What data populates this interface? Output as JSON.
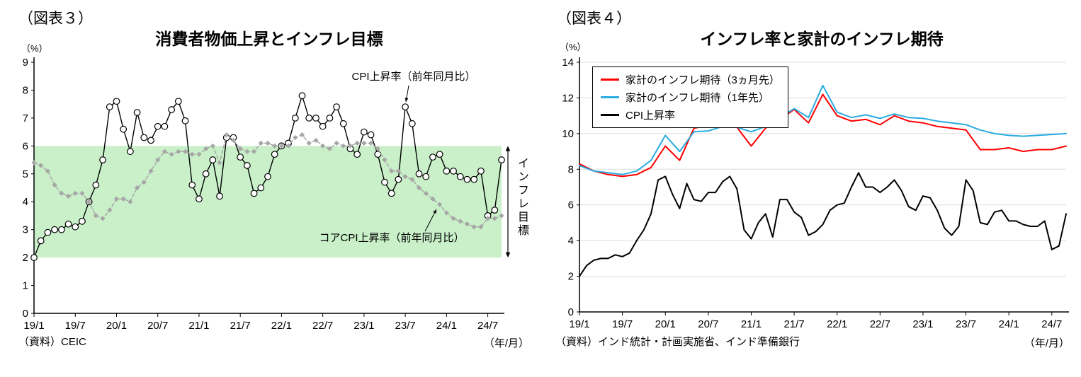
{
  "page": {
    "background": "#ffffff"
  },
  "chart_data": [
    {
      "type": "line",
      "figure_label": "（図表３）",
      "title": "消費者物価上昇とインフレ目標",
      "y_unit": "（%）",
      "x_unit": "（年/月）",
      "source": "（資料）CEIC",
      "ylim": [
        0,
        9
      ],
      "ytick_step": 1,
      "grid": false,
      "n_points": 69,
      "x_start": "19/1",
      "x_end": "24/9",
      "xticks": [
        "19/1",
        "19/7",
        "20/1",
        "20/7",
        "21/1",
        "21/7",
        "22/1",
        "22/7",
        "23/1",
        "23/7",
        "24/1",
        "24/7"
      ],
      "target_band": {
        "from": 2,
        "to": 6,
        "color": "#c9f0c9",
        "label": "インフレ目標"
      },
      "annotations": [
        "CPI上昇率（前年同月比）",
        "コアCPI上昇率（前年同月比）"
      ],
      "series": [
        {
          "name": "CPI上昇率（前年同月比）",
          "color": "#000000",
          "marker": "circle",
          "marker_fill": "#ffffff",
          "values": [
            2.0,
            2.6,
            2.9,
            3.0,
            3.0,
            3.2,
            3.1,
            3.3,
            4.0,
            4.6,
            5.5,
            7.4,
            7.6,
            6.6,
            5.8,
            7.2,
            6.3,
            6.2,
            6.7,
            6.7,
            7.3,
            7.6,
            6.9,
            4.6,
            4.1,
            5.0,
            5.5,
            4.2,
            6.3,
            6.3,
            5.6,
            5.3,
            4.3,
            4.5,
            4.9,
            5.7,
            6.0,
            6.1,
            7.0,
            7.8,
            7.0,
            7.0,
            6.7,
            7.0,
            7.4,
            6.8,
            5.9,
            5.7,
            6.5,
            6.4,
            5.7,
            4.7,
            4.3,
            4.8,
            7.4,
            6.8,
            5.0,
            4.9,
            5.6,
            5.7,
            5.1,
            5.1,
            4.9,
            4.8,
            4.8,
            5.1,
            3.5,
            3.7,
            5.5
          ]
        },
        {
          "name": "コアCPI上昇率（前年同月比）",
          "color": "#a6a6a6",
          "dash": "5,3",
          "marker": "diamond",
          "values": [
            5.4,
            5.3,
            5.1,
            4.6,
            4.3,
            4.2,
            4.3,
            4.3,
            4.0,
            3.5,
            3.4,
            3.7,
            4.1,
            4.1,
            4.0,
            4.5,
            4.7,
            5.1,
            5.5,
            5.8,
            5.7,
            5.8,
            5.8,
            5.7,
            5.7,
            5.9,
            6.0,
            5.4,
            6.4,
            6.2,
            5.9,
            5.8,
            5.8,
            6.1,
            6.1,
            6.0,
            6.0,
            6.0,
            6.3,
            6.4,
            6.1,
            6.2,
            6.0,
            5.9,
            6.1,
            6.0,
            6.0,
            6.1,
            6.1,
            6.1,
            5.9,
            5.5,
            5.1,
            5.1,
            4.9,
            4.8,
            4.5,
            4.3,
            4.1,
            3.9,
            3.6,
            3.4,
            3.3,
            3.2,
            3.1,
            3.1,
            3.4,
            3.4,
            3.5
          ]
        }
      ]
    },
    {
      "type": "line",
      "figure_label": "（図表４）",
      "title": "インフレ率と家計のインフレ期待",
      "y_unit": "（%）",
      "x_unit": "（年/月）",
      "source": "（資料）インド統計・計画実施省、インド準備銀行",
      "ylim": [
        0,
        14
      ],
      "ytick_step": 2,
      "grid": true,
      "legend_position": "top-left",
      "n_points": 69,
      "x_start": "19/1",
      "x_end": "24/9",
      "xticks": [
        "19/1",
        "19/7",
        "20/1",
        "20/7",
        "21/1",
        "21/7",
        "22/1",
        "22/7",
        "23/1",
        "23/7",
        "24/1",
        "24/7"
      ],
      "annotations": [],
      "series": [
        {
          "name": "家計のインフレ期待（3ヵ月先）",
          "color": "#ff0000",
          "x": [
            0,
            2,
            4,
            6,
            8,
            10,
            12,
            14,
            16,
            18,
            20,
            22,
            24,
            26,
            28,
            30,
            32,
            34,
            36,
            38,
            40,
            42,
            44,
            46,
            48,
            50,
            52,
            54,
            56,
            58,
            60,
            62,
            64,
            66,
            68
          ],
          "values": [
            8.3,
            7.9,
            7.7,
            7.6,
            7.7,
            8.1,
            9.3,
            8.5,
            10.3,
            10.45,
            10.4,
            10.35,
            9.3,
            10.3,
            10.8,
            11.35,
            10.6,
            12.2,
            11.0,
            10.7,
            10.8,
            10.5,
            11.0,
            10.7,
            10.6,
            10.4,
            10.3,
            10.2,
            9.1,
            9.1,
            9.2,
            9.0,
            9.1,
            9.1,
            9.3
          ]
        },
        {
          "name": "家計のインフレ期待（1年先）",
          "color": "#29abe2",
          "x": [
            0,
            2,
            4,
            6,
            8,
            10,
            12,
            14,
            16,
            18,
            20,
            22,
            24,
            26,
            28,
            30,
            32,
            34,
            36,
            38,
            40,
            42,
            44,
            46,
            48,
            50,
            52,
            54,
            56,
            58,
            60,
            62,
            64,
            66,
            68
          ],
          "values": [
            8.2,
            7.9,
            7.8,
            7.7,
            7.9,
            8.5,
            9.9,
            9.0,
            10.1,
            10.15,
            10.4,
            10.35,
            10.1,
            10.4,
            10.9,
            11.4,
            10.9,
            12.7,
            11.2,
            10.9,
            11.05,
            10.85,
            11.1,
            10.9,
            10.85,
            10.7,
            10.6,
            10.5,
            10.2,
            10.0,
            9.9,
            9.85,
            9.9,
            9.95,
            10.0
          ]
        },
        {
          "name": "CPI上昇率",
          "color": "#000000",
          "values": [
            2.0,
            2.6,
            2.9,
            3.0,
            3.0,
            3.2,
            3.1,
            3.3,
            4.0,
            4.6,
            5.5,
            7.4,
            7.6,
            6.6,
            5.8,
            7.2,
            6.3,
            6.2,
            6.7,
            6.7,
            7.3,
            7.6,
            6.9,
            4.6,
            4.1,
            5.0,
            5.5,
            4.2,
            6.3,
            6.3,
            5.6,
            5.3,
            4.3,
            4.5,
            4.9,
            5.7,
            6.0,
            6.1,
            7.0,
            7.8,
            7.0,
            7.0,
            6.7,
            7.0,
            7.4,
            6.8,
            5.9,
            5.7,
            6.5,
            6.4,
            5.7,
            4.7,
            4.3,
            4.8,
            7.4,
            6.8,
            5.0,
            4.9,
            5.6,
            5.7,
            5.1,
            5.1,
            4.9,
            4.8,
            4.8,
            5.1,
            3.5,
            3.7,
            5.5
          ]
        }
      ]
    }
  ]
}
